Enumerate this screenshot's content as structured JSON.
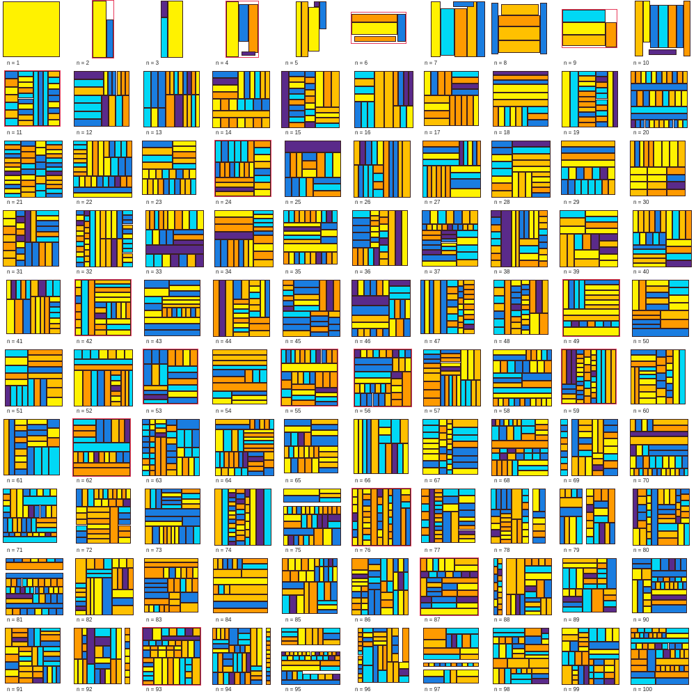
{
  "figure": {
    "label_prefix": "n = ",
    "panels": [
      {
        "n": "1"
      },
      {
        "n": "2"
      },
      {
        "n": "3"
      },
      {
        "n": "4"
      },
      {
        "n": "5"
      },
      {
        "n": "6"
      },
      {
        "n": "7"
      },
      {
        "n": "8"
      },
      {
        "n": "9"
      },
      {
        "n": "10"
      },
      {
        "n": "11"
      },
      {
        "n": "12"
      },
      {
        "n": "13"
      },
      {
        "n": "14"
      },
      {
        "n": "15"
      },
      {
        "n": "16"
      },
      {
        "n": "17"
      },
      {
        "n": "18"
      },
      {
        "n": "19"
      },
      {
        "n": "20"
      },
      {
        "n": "21"
      },
      {
        "n": "22"
      },
      {
        "n": "23"
      },
      {
        "n": "24"
      },
      {
        "n": "25"
      },
      {
        "n": "26"
      },
      {
        "n": "27"
      },
      {
        "n": "28"
      },
      {
        "n": "29"
      },
      {
        "n": "30"
      },
      {
        "n": "31"
      },
      {
        "n": "32"
      },
      {
        "n": "33"
      },
      {
        "n": "34"
      },
      {
        "n": "35"
      },
      {
        "n": "36"
      },
      {
        "n": "37"
      },
      {
        "n": "38"
      },
      {
        "n": "39"
      },
      {
        "n": "40"
      },
      {
        "n": "41"
      },
      {
        "n": "42"
      },
      {
        "n": "43"
      },
      {
        "n": "44"
      },
      {
        "n": "45"
      },
      {
        "n": "46"
      },
      {
        "n": "47"
      },
      {
        "n": "48"
      },
      {
        "n": "49"
      },
      {
        "n": "50"
      },
      {
        "n": "51"
      },
      {
        "n": "52"
      },
      {
        "n": "53"
      },
      {
        "n": "54"
      },
      {
        "n": "55"
      },
      {
        "n": "56"
      },
      {
        "n": "57"
      },
      {
        "n": "58"
      },
      {
        "n": "59"
      },
      {
        "n": "60"
      },
      {
        "n": "61"
      },
      {
        "n": "62"
      },
      {
        "n": "63"
      },
      {
        "n": "64"
      },
      {
        "n": "65"
      },
      {
        "n": "66"
      },
      {
        "n": "67"
      },
      {
        "n": "68"
      },
      {
        "n": "69"
      },
      {
        "n": "70"
      },
      {
        "n": "71"
      },
      {
        "n": "72"
      },
      {
        "n": "73"
      },
      {
        "n": "74"
      },
      {
        "n": "75"
      },
      {
        "n": "76"
      },
      {
        "n": "77"
      },
      {
        "n": "78"
      },
      {
        "n": "79"
      },
      {
        "n": "80"
      },
      {
        "n": "81"
      },
      {
        "n": "82"
      },
      {
        "n": "83"
      },
      {
        "n": "84"
      },
      {
        "n": "85"
      },
      {
        "n": "86"
      },
      {
        "n": "87"
      },
      {
        "n": "88"
      },
      {
        "n": "89"
      },
      {
        "n": "90"
      },
      {
        "n": "91"
      },
      {
        "n": "92"
      },
      {
        "n": "93"
      },
      {
        "n": "94"
      },
      {
        "n": "95"
      },
      {
        "n": "96"
      },
      {
        "n": "97"
      },
      {
        "n": "98"
      },
      {
        "n": "99"
      },
      {
        "n": "100"
      }
    ]
  },
  "colors": {
    "yellow": "#fff200",
    "gold": "#ffc000",
    "orange": "#ff9a00",
    "cyan": "#00d8f5",
    "blue": "#1a7de0",
    "purple": "#5a2a8a",
    "outline": "#3a1f1f",
    "clip_border": "#e8395a"
  }
}
